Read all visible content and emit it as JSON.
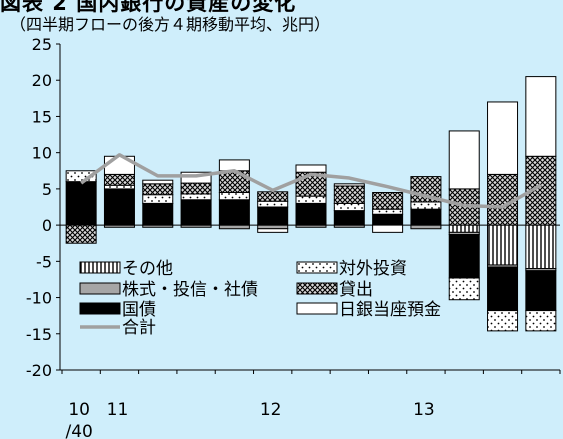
{
  "title": "図表 2 国内銀行の資産の変化",
  "subtitle": "（四半期フローの後方４期移動平均、兆円）",
  "chart_data": {
    "type": "bar",
    "stacked": true,
    "ylim": [
      -20,
      25
    ],
    "y_ticks": [
      25,
      20,
      15,
      10,
      5,
      0,
      -5,
      -10,
      -15,
      -20
    ],
    "x_tick_labels": [
      {
        "label": "10",
        "at_bar": 0
      },
      {
        "label": "11",
        "at_bar": 1
      },
      {
        "label": "12",
        "at_bar": 5
      },
      {
        "label": "13",
        "at_bar": 9
      },
      {
        "label": "/40",
        "at_bar": 0
      }
    ],
    "num_bars": 13,
    "legend_position": "lower-left",
    "series": [
      {
        "key": "other",
        "name": "その他",
        "pattern": "vlines",
        "values": [
          0,
          0,
          0,
          0,
          0,
          0,
          0,
          0,
          0,
          0,
          -1,
          -5.5,
          -6
        ]
      },
      {
        "key": "stocks",
        "name": "株式・投信・社債",
        "pattern": "gray",
        "values": [
          0,
          -0.3,
          -0.3,
          -0.3,
          -0.5,
          -0.5,
          -0.3,
          -0.3,
          0,
          -0.5,
          -0.3,
          -0.3,
          -0.3
        ]
      },
      {
        "key": "gov",
        "name": "国債",
        "pattern": "black",
        "values": [
          6,
          5,
          3,
          3.5,
          3.5,
          2.5,
          3,
          2,
          1.5,
          2.2,
          -6,
          -6,
          -5.5
        ]
      },
      {
        "key": "foreign",
        "name": "対外投資",
        "pattern": "dots",
        "values": [
          1.5,
          0.5,
          1.2,
          0.8,
          1,
          0.8,
          1,
          1,
          0.7,
          1,
          -3,
          -2.8,
          -2.8
        ]
      },
      {
        "key": "loans",
        "name": "貸出",
        "pattern": "cross",
        "values": [
          -2.5,
          1.5,
          1.5,
          1.5,
          3,
          1.3,
          3.3,
          2.4,
          2.3,
          3.5,
          5,
          7,
          9.5
        ]
      },
      {
        "key": "boj",
        "name": "日銀当座預金",
        "pattern": "white",
        "values": [
          0,
          2.5,
          0.5,
          1.5,
          1.5,
          -0.5,
          1,
          0.3,
          -1,
          0,
          8,
          10,
          11
        ]
      }
    ],
    "total": {
      "name": "合計",
      "values": [
        5.8,
        9.7,
        6.8,
        6.8,
        7.5,
        4.8,
        7,
        6.5,
        5.3,
        4,
        2.7,
        2.5,
        5.5
      ]
    }
  }
}
